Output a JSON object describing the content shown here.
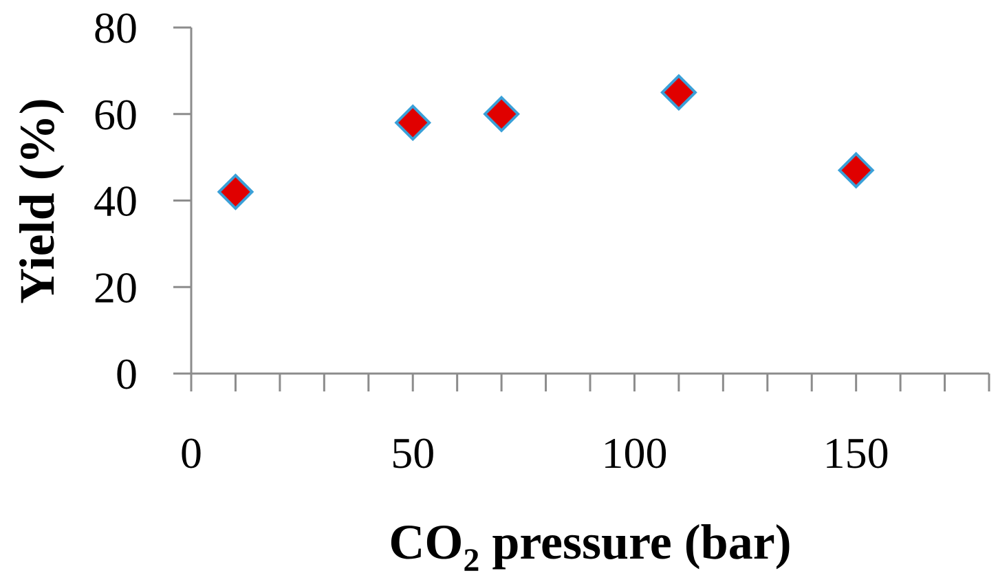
{
  "chart_data": {
    "type": "scatter",
    "title": "",
    "xlabel_parts": [
      "CO",
      "2",
      " pressure (bar)"
    ],
    "ylabel": "Yield (%)",
    "xlim": [
      0,
      180
    ],
    "ylim": [
      0,
      80
    ],
    "x_ticks": [
      0,
      50,
      100,
      150
    ],
    "x_minor_step": 10,
    "y_ticks": [
      0,
      20,
      40,
      60,
      80
    ],
    "grid": false,
    "legend": "none",
    "series": [
      {
        "marker": "diamond",
        "fill_color": "#e00000",
        "edge_color": "#3aa0d8",
        "points": [
          {
            "x": 10,
            "y": 42
          },
          {
            "x": 50,
            "y": 58
          },
          {
            "x": 70,
            "y": 60
          },
          {
            "x": 110,
            "y": 65
          },
          {
            "x": 150,
            "y": 47
          }
        ]
      }
    ]
  }
}
